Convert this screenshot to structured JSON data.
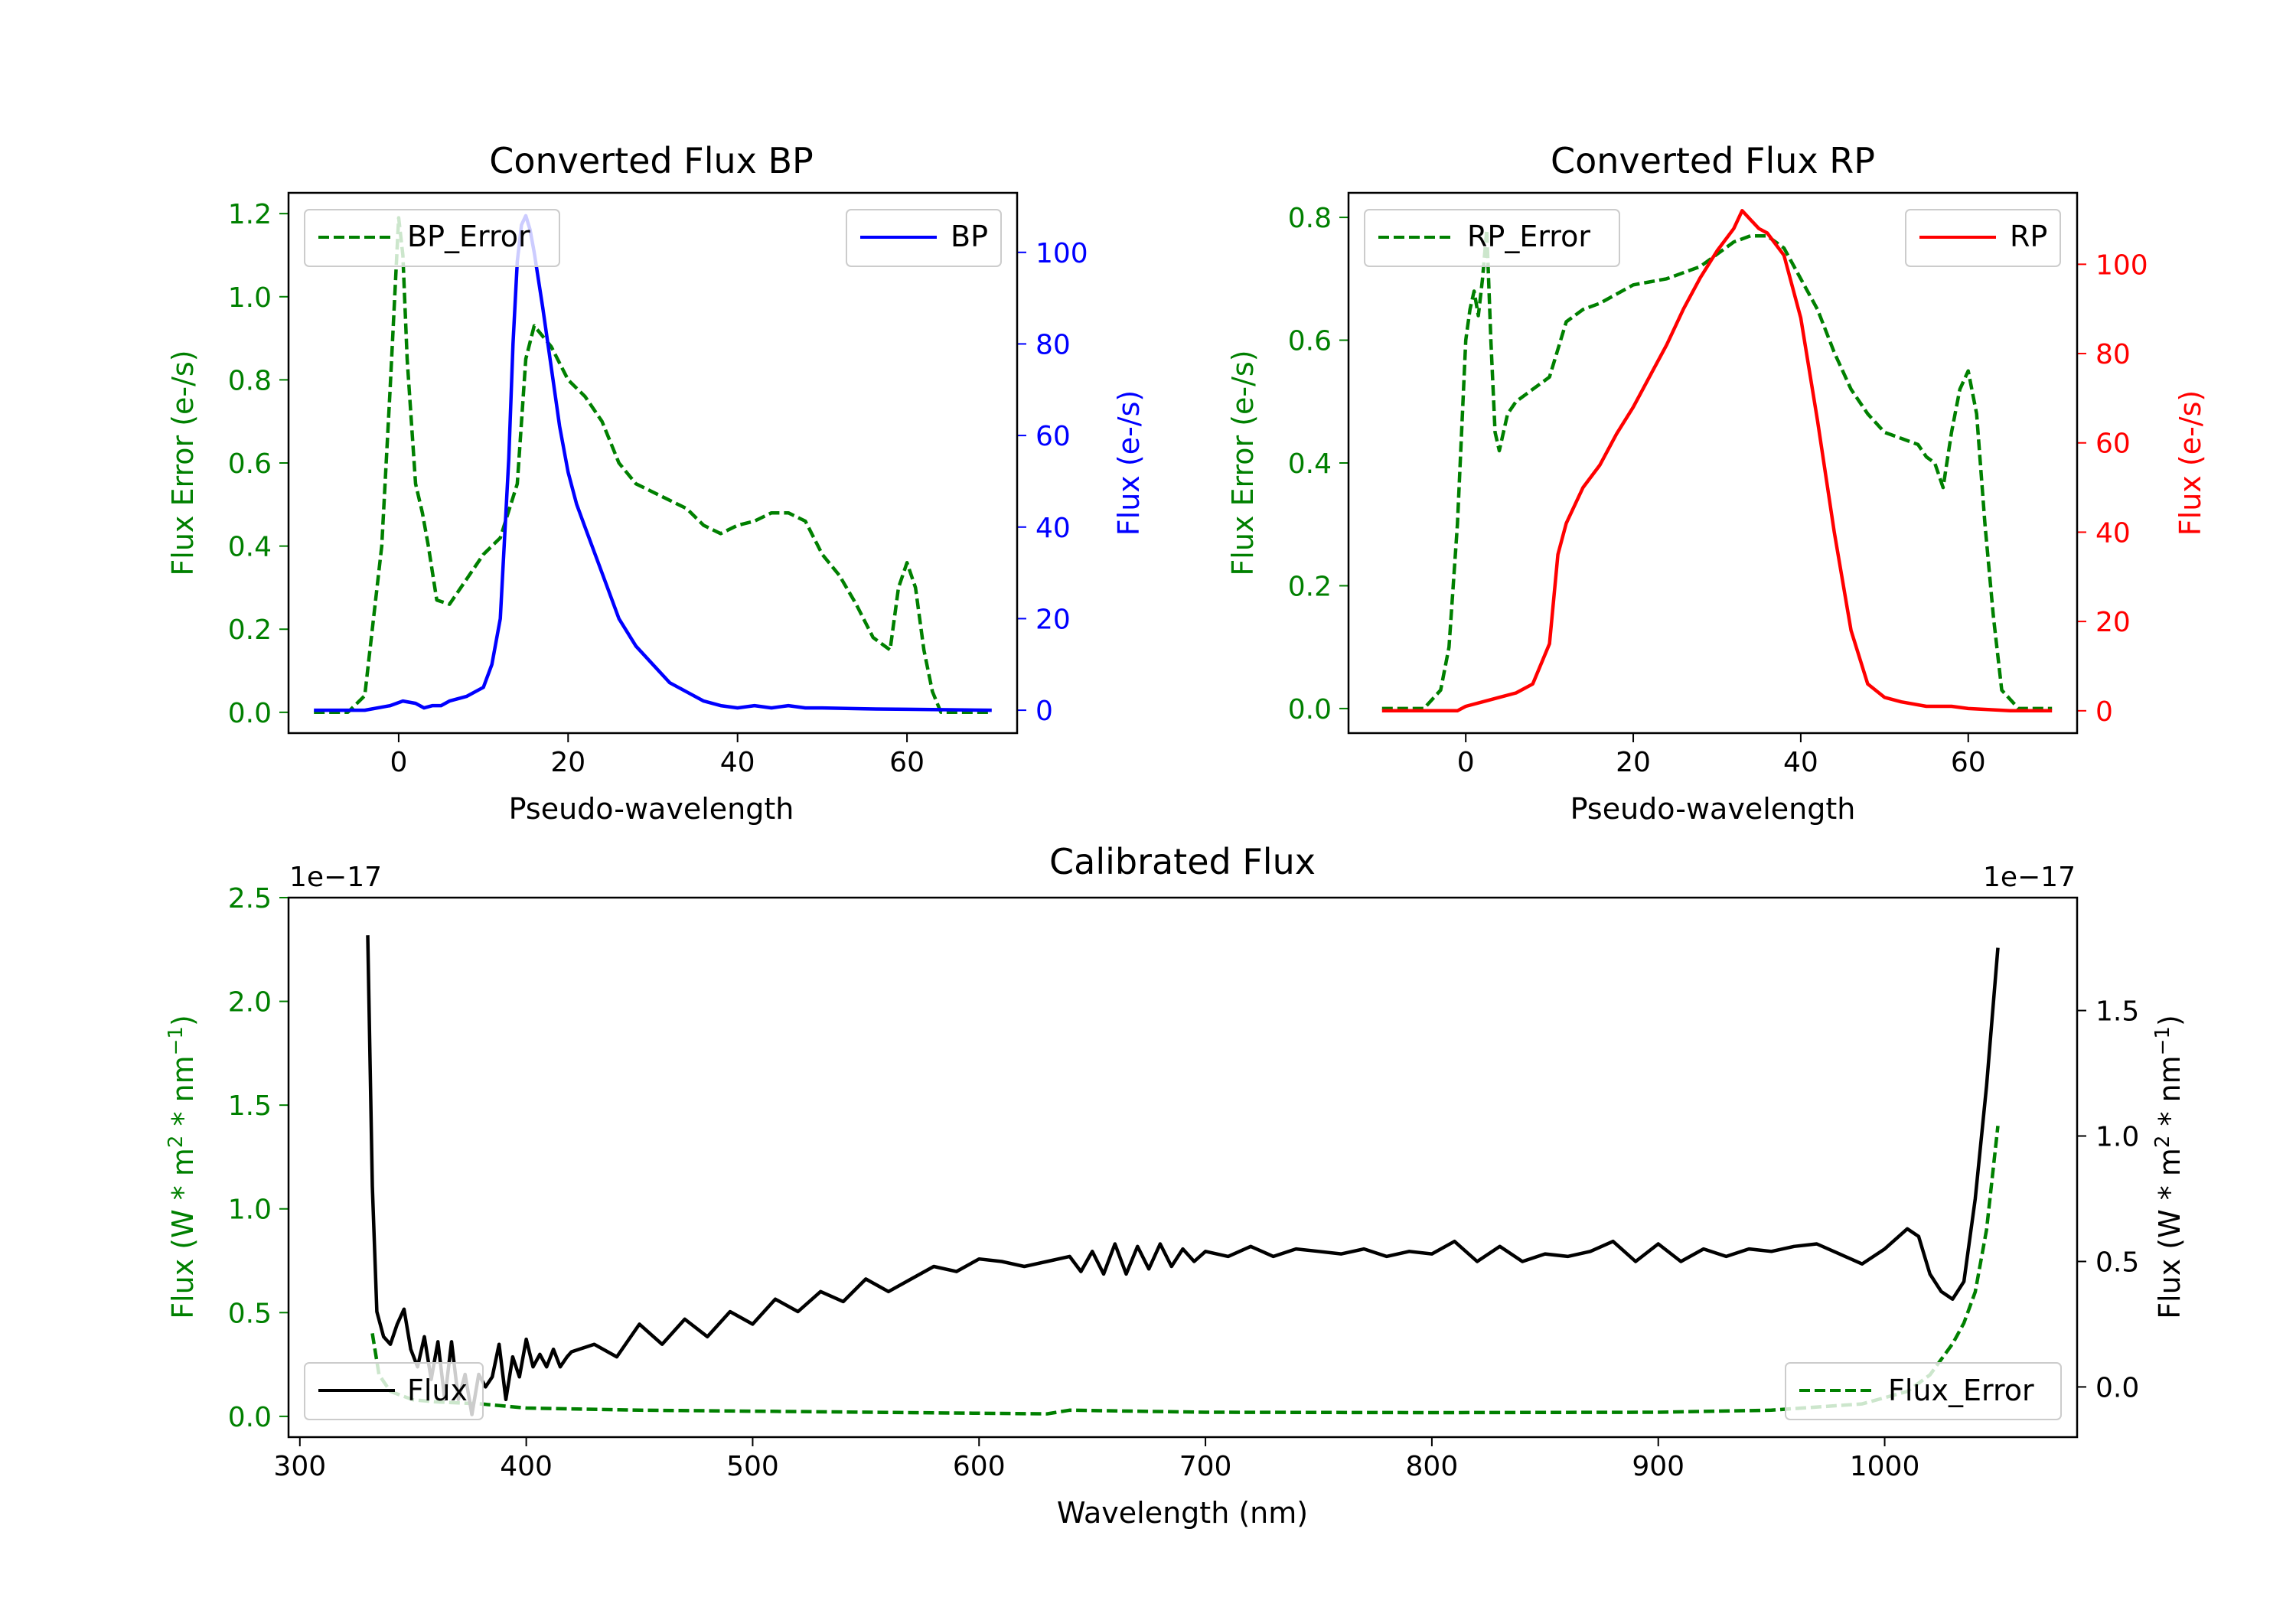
{
  "chart_data": [
    {
      "id": "bp",
      "type": "line",
      "title": "Converted Flux BP",
      "xlabel": "Pseudo-wavelength",
      "ylabel_left": "Flux Error (e-/s)",
      "ylabel_right": "Flux (e-/s)",
      "xlim": [
        -13,
        73
      ],
      "ylim_left": [
        -0.05,
        1.25
      ],
      "ylim_right": [
        -5,
        113
      ],
      "xticks": [
        0,
        20,
        40,
        60
      ],
      "yticks_left": [
        0.0,
        0.2,
        0.4,
        0.6,
        0.8,
        1.0,
        1.2
      ],
      "yticks_right": [
        0,
        20,
        40,
        60,
        80,
        100
      ],
      "legend_left": {
        "label": "BP_Error",
        "position": "upper left"
      },
      "legend_right": {
        "label": "BP",
        "position": "upper right"
      },
      "colors": {
        "error": "#008000",
        "flux": "#0000ff",
        "left_axis": "#008000",
        "right_axis": "#0000ff"
      },
      "series": [
        {
          "name": "BP_Error",
          "axis": "left",
          "style": "dashed",
          "x": [
            -10,
            -6,
            -4,
            -2,
            -1,
            0,
            0.5,
            1,
            2,
            2.8,
            3.5,
            4.5,
            6,
            8,
            10,
            12,
            14,
            15,
            16,
            18,
            20,
            22,
            24,
            26,
            28,
            30,
            34,
            36,
            38,
            40,
            42,
            44,
            46,
            48,
            50,
            52,
            54,
            56,
            58,
            59,
            60,
            61,
            62,
            63,
            64,
            66,
            70
          ],
          "y": [
            0.0,
            0.0,
            0.04,
            0.4,
            0.78,
            1.19,
            1.1,
            0.85,
            0.55,
            0.48,
            0.4,
            0.27,
            0.26,
            0.32,
            0.38,
            0.42,
            0.55,
            0.85,
            0.93,
            0.88,
            0.8,
            0.76,
            0.7,
            0.6,
            0.55,
            0.53,
            0.49,
            0.45,
            0.43,
            0.45,
            0.46,
            0.48,
            0.48,
            0.46,
            0.38,
            0.33,
            0.26,
            0.18,
            0.15,
            0.3,
            0.36,
            0.3,
            0.15,
            0.05,
            0.0,
            0.0,
            0.0
          ]
        },
        {
          "name": "BP",
          "axis": "right",
          "style": "solid",
          "x": [
            -10,
            -4,
            -1,
            0.5,
            2,
            3,
            4,
            5,
            6,
            8,
            10,
            11,
            12,
            13,
            13.5,
            14,
            14.5,
            15,
            15.5,
            16,
            17,
            18,
            19,
            20,
            21,
            22,
            24,
            26,
            28,
            30,
            32,
            34,
            36,
            38,
            40,
            42,
            44,
            46,
            48,
            50,
            55,
            60,
            65,
            70
          ],
          "y": [
            0,
            0,
            1,
            2,
            1.5,
            0.5,
            1,
            1,
            2,
            3,
            5,
            10,
            20,
            55,
            80,
            98,
            106,
            108,
            105,
            100,
            88,
            75,
            62,
            52,
            45,
            40,
            30,
            20,
            14,
            10,
            6,
            4,
            2,
            1,
            0.5,
            1,
            0.5,
            1,
            0.5,
            0.5,
            0.3,
            0.2,
            0.1,
            0
          ]
        }
      ]
    },
    {
      "id": "rp",
      "type": "line",
      "title": "Converted Flux RP",
      "xlabel": "Pseudo-wavelength",
      "ylabel_left": "Flux Error (e-/s)",
      "ylabel_right": "Flux (e-/s)",
      "xlim": [
        -14,
        73
      ],
      "ylim_left": [
        -0.04,
        0.84
      ],
      "ylim_right": [
        -5,
        116
      ],
      "xticks": [
        0,
        20,
        40,
        60
      ],
      "yticks_left": [
        0.0,
        0.2,
        0.4,
        0.6,
        0.8
      ],
      "yticks_right": [
        0,
        20,
        40,
        60,
        80,
        100
      ],
      "legend_left": {
        "label": "RP_Error",
        "position": "upper left"
      },
      "legend_right": {
        "label": "RP",
        "position": "upper right"
      },
      "colors": {
        "error": "#008000",
        "flux": "#ff0000",
        "left_axis": "#008000",
        "right_axis": "#ff0000"
      },
      "series": [
        {
          "name": "RP_Error",
          "axis": "left",
          "style": "dashed",
          "x": [
            -10,
            -5,
            -3,
            -2,
            -1,
            0,
            0.5,
            1,
            1.5,
            2,
            2.5,
            3,
            3.5,
            4,
            5,
            6,
            8,
            10,
            12,
            14,
            16,
            20,
            24,
            28,
            32,
            34,
            36,
            38,
            40,
            42,
            44,
            46,
            48,
            50,
            52,
            54,
            55,
            56,
            57,
            58,
            59,
            60,
            61,
            62,
            63,
            64,
            66,
            70
          ],
          "y": [
            0.0,
            0.0,
            0.03,
            0.1,
            0.3,
            0.6,
            0.65,
            0.68,
            0.64,
            0.7,
            0.78,
            0.6,
            0.45,
            0.42,
            0.48,
            0.5,
            0.52,
            0.54,
            0.63,
            0.65,
            0.66,
            0.69,
            0.7,
            0.72,
            0.76,
            0.77,
            0.77,
            0.75,
            0.7,
            0.65,
            0.58,
            0.52,
            0.48,
            0.45,
            0.44,
            0.43,
            0.41,
            0.4,
            0.36,
            0.45,
            0.52,
            0.55,
            0.48,
            0.3,
            0.15,
            0.03,
            0.0,
            0.0
          ]
        },
        {
          "name": "RP",
          "axis": "right",
          "style": "solid",
          "x": [
            -10,
            -4,
            -1,
            0,
            2,
            4,
            6,
            8,
            10,
            11,
            12,
            14,
            16,
            18,
            20,
            22,
            24,
            26,
            28,
            30,
            32,
            33,
            34,
            35,
            36,
            38,
            40,
            42,
            44,
            46,
            48,
            50,
            52,
            55,
            58,
            60,
            65,
            70
          ],
          "y": [
            0,
            0,
            0,
            1,
            2,
            3,
            4,
            6,
            15,
            35,
            42,
            50,
            55,
            62,
            68,
            75,
            82,
            90,
            97,
            103,
            108,
            112,
            110,
            108,
            107,
            102,
            88,
            65,
            40,
            18,
            6,
            3,
            2,
            1,
            1,
            0.5,
            0,
            0
          ]
        }
      ]
    },
    {
      "id": "cal",
      "type": "line",
      "title": "Calibrated Flux",
      "xlabel": "Wavelength (nm)",
      "ylabel_left_pre": "Flux (W * m",
      "ylabel_sup1": "2",
      "ylabel_mid": " * nm",
      "ylabel_sup2": "−1",
      "ylabel_end": ")",
      "offset_left": "1e−17",
      "offset_right": "1e−17",
      "xlim": [
        295,
        1085
      ],
      "ylim_left": [
        -0.1,
        2.5
      ],
      "ylim_right": [
        -0.2,
        1.95
      ],
      "xticks": [
        300,
        400,
        500,
        600,
        700,
        800,
        900,
        1000
      ],
      "yticks_left": [
        0.0,
        0.5,
        1.0,
        1.5,
        2.0,
        2.5
      ],
      "yticks_right": [
        0.0,
        0.5,
        1.0,
        1.5
      ],
      "legend_flux": {
        "label": "Flux",
        "position": "lower left"
      },
      "legend_error": {
        "label": "Flux_Error",
        "position": "lower right"
      },
      "colors": {
        "error": "#008000",
        "flux": "#000000",
        "left_axis": "#008000",
        "right_axis": "#000000"
      },
      "series": [
        {
          "name": "Flux_Error",
          "axis": "left",
          "style": "dashed",
          "x": [
            332,
            335,
            340,
            350,
            360,
            380,
            400,
            450,
            500,
            600,
            630,
            640,
            700,
            800,
            900,
            950,
            990,
            1010,
            1020,
            1030,
            1035,
            1040,
            1045,
            1050
          ],
          "y": [
            0.4,
            0.2,
            0.12,
            0.08,
            0.07,
            0.06,
            0.04,
            0.03,
            0.025,
            0.015,
            0.012,
            0.03,
            0.02,
            0.018,
            0.02,
            0.03,
            0.06,
            0.12,
            0.2,
            0.35,
            0.45,
            0.6,
            0.9,
            1.4
          ]
        },
        {
          "name": "Flux",
          "axis": "right",
          "style": "solid",
          "x": [
            330,
            332,
            334,
            337,
            340,
            343,
            346,
            349,
            352,
            355,
            358,
            361,
            364,
            367,
            370,
            373,
            376,
            379,
            382,
            385,
            388,
            391,
            394,
            397,
            400,
            403,
            406,
            409,
            412,
            415,
            418,
            420,
            430,
            440,
            450,
            460,
            470,
            480,
            490,
            500,
            510,
            520,
            530,
            540,
            550,
            560,
            570,
            580,
            590,
            600,
            610,
            620,
            630,
            640,
            645,
            650,
            655,
            660,
            665,
            670,
            675,
            680,
            685,
            690,
            695,
            700,
            710,
            720,
            730,
            740,
            750,
            760,
            770,
            780,
            790,
            800,
            810,
            820,
            830,
            840,
            850,
            860,
            870,
            880,
            890,
            900,
            910,
            920,
            930,
            940,
            950,
            960,
            970,
            980,
            990,
            1000,
            1010,
            1015,
            1020,
            1025,
            1030,
            1035,
            1040,
            1045,
            1050
          ],
          "y": [
            1.8,
            0.8,
            0.3,
            0.2,
            0.17,
            0.25,
            0.31,
            0.15,
            0.08,
            0.2,
            0.03,
            0.18,
            -0.05,
            0.18,
            -0.05,
            0.05,
            -0.11,
            0.05,
            0.0,
            0.04,
            0.17,
            -0.05,
            0.12,
            0.04,
            0.19,
            0.08,
            0.13,
            0.08,
            0.15,
            0.08,
            0.12,
            0.14,
            0.17,
            0.12,
            0.25,
            0.17,
            0.27,
            0.2,
            0.3,
            0.25,
            0.35,
            0.3,
            0.38,
            0.34,
            0.43,
            0.38,
            0.43,
            0.48,
            0.46,
            0.51,
            0.5,
            0.48,
            0.5,
            0.52,
            0.46,
            0.54,
            0.45,
            0.57,
            0.45,
            0.56,
            0.47,
            0.57,
            0.48,
            0.55,
            0.5,
            0.54,
            0.52,
            0.56,
            0.52,
            0.55,
            0.54,
            0.53,
            0.55,
            0.52,
            0.54,
            0.53,
            0.58,
            0.5,
            0.56,
            0.5,
            0.53,
            0.52,
            0.54,
            0.58,
            0.5,
            0.57,
            0.5,
            0.55,
            0.52,
            0.55,
            0.54,
            0.56,
            0.57,
            0.53,
            0.49,
            0.55,
            0.63,
            0.6,
            0.45,
            0.38,
            0.35,
            0.42,
            0.75,
            1.2,
            1.75
          ]
        }
      ]
    }
  ]
}
